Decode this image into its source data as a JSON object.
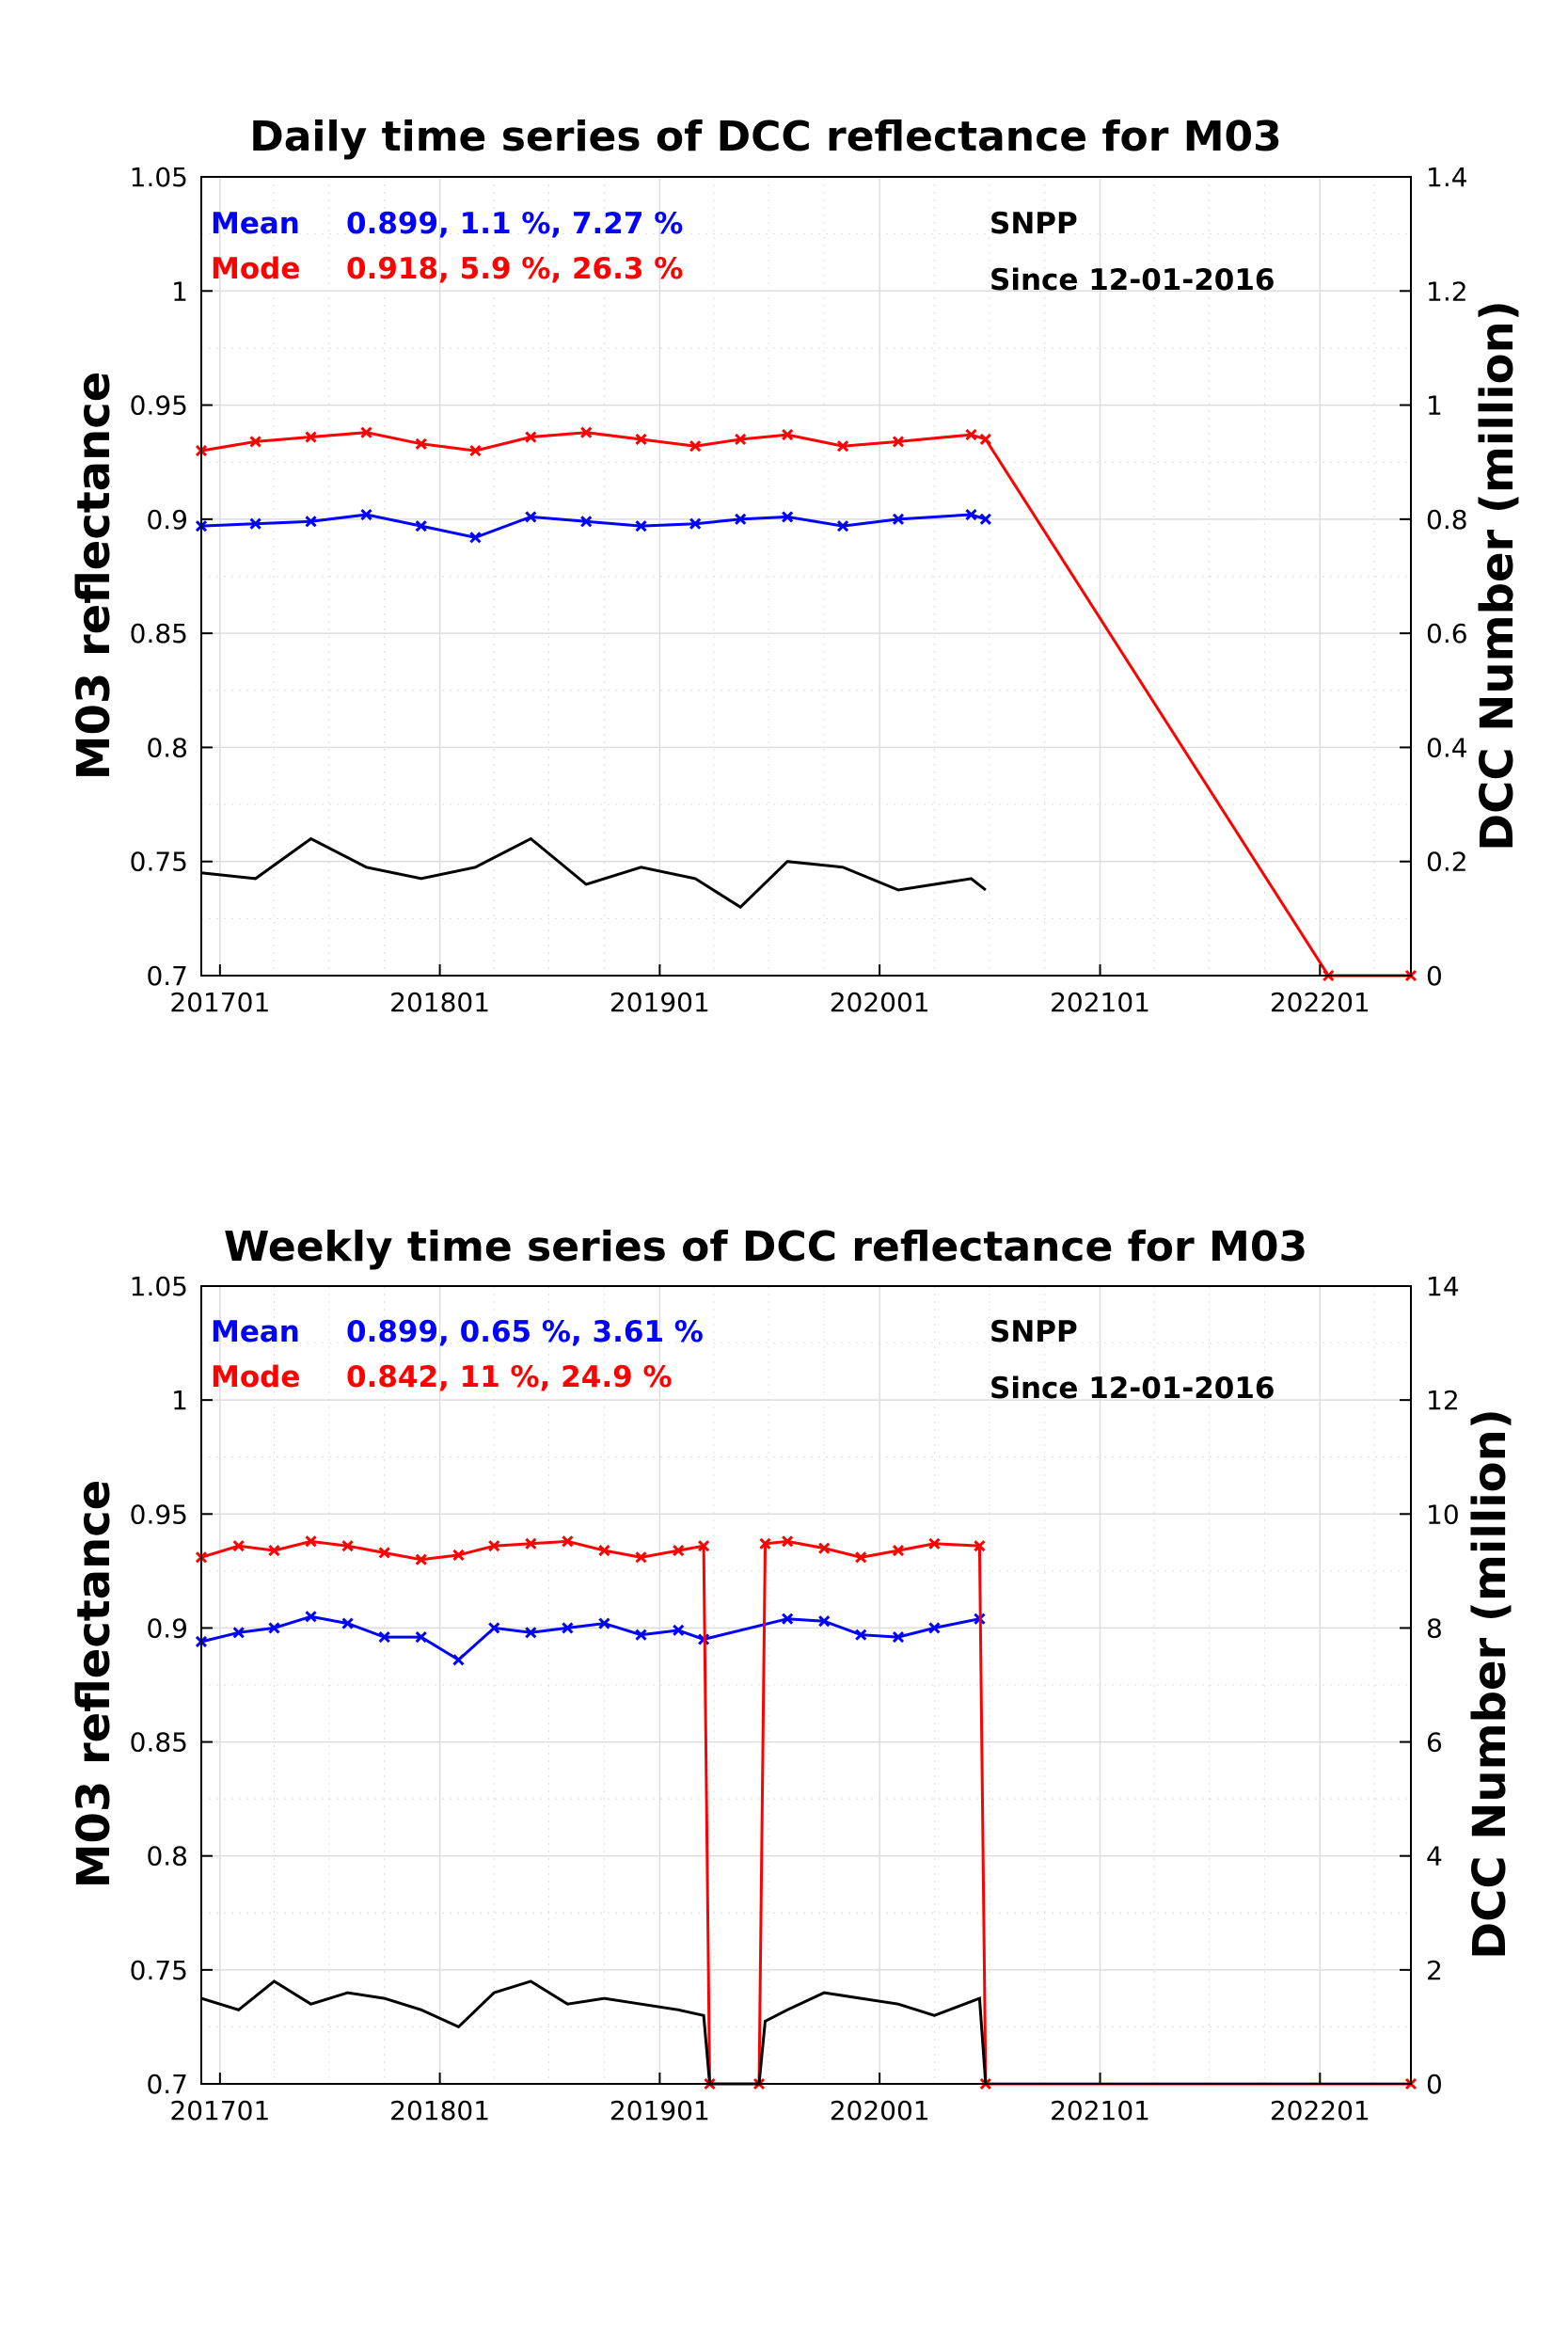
{
  "chart_data": [
    {
      "type": "line",
      "title": "Daily time series of DCC reflectance for M03",
      "ylabel": "M03 reflectance",
      "y2label": "DCC Number (million)",
      "xlabel": "",
      "x_range": [
        "2016-12-01",
        "2022-06-01"
      ],
      "ylim": [
        0.7,
        1.05
      ],
      "y2lim": [
        0,
        1.4
      ],
      "x_ticks": [
        "201701",
        "201801",
        "201901",
        "202001",
        "202101",
        "202201"
      ],
      "y_ticks": [
        "0.7",
        "0.75",
        "0.8",
        "0.85",
        "0.9",
        "0.95",
        "1",
        "1.05"
      ],
      "y2_ticks": [
        "0",
        "0.2",
        "0.4",
        "0.6",
        "0.8",
        "1",
        "1.2",
        "1.4"
      ],
      "grid": true,
      "annotations": {
        "mean_label": "Mean",
        "mean_stats": "0.899, 1.1 %, 7.27 %",
        "mode_label": "Mode",
        "mode_stats": "0.918, 5.9 %, 26.3 %",
        "satellite": "SNPP",
        "since": "Since 12-01-2016"
      },
      "series": [
        {
          "name": "Mean",
          "color": "#0000ff",
          "axis": "left",
          "x": [
            "2016-12-01",
            "2017-03-01",
            "2017-06-01",
            "2017-09-01",
            "2017-12-01",
            "2018-03-01",
            "2018-06-01",
            "2018-09-01",
            "2018-12-01",
            "2019-03-01",
            "2019-05-15",
            "2019-08-01",
            "2019-11-01",
            "2020-02-01",
            "2020-06-01",
            "2020-06-25"
          ],
          "y": [
            0.897,
            0.898,
            0.899,
            0.902,
            0.897,
            0.892,
            0.901,
            0.899,
            0.897,
            0.898,
            0.9,
            0.901,
            0.897,
            0.9,
            0.902,
            0.9
          ]
        },
        {
          "name": "Mode",
          "color": "#ff0000",
          "axis": "left",
          "x": [
            "2016-12-01",
            "2017-03-01",
            "2017-06-01",
            "2017-09-01",
            "2017-12-01",
            "2018-03-01",
            "2018-06-01",
            "2018-09-01",
            "2018-12-01",
            "2019-03-01",
            "2019-05-15",
            "2019-08-01",
            "2019-11-01",
            "2020-02-01",
            "2020-06-01",
            "2020-06-25",
            "2022-01-15",
            "2022-06-01"
          ],
          "y": [
            0.93,
            0.934,
            0.936,
            0.938,
            0.933,
            0.93,
            0.936,
            0.938,
            0.935,
            0.932,
            0.935,
            0.937,
            0.932,
            0.934,
            0.937,
            0.935,
            0.7,
            0.7
          ]
        },
        {
          "name": "DCC Number",
          "color": "#000000",
          "axis": "right",
          "x": [
            "2016-12-01",
            "2017-03-01",
            "2017-06-01",
            "2017-09-01",
            "2017-12-01",
            "2018-03-01",
            "2018-06-01",
            "2018-09-01",
            "2018-12-01",
            "2019-03-01",
            "2019-05-15",
            "2019-08-01",
            "2019-11-01",
            "2020-02-01",
            "2020-06-01",
            "2020-06-25"
          ],
          "y": [
            0.18,
            0.17,
            0.24,
            0.19,
            0.17,
            0.19,
            0.24,
            0.16,
            0.19,
            0.17,
            0.12,
            0.2,
            0.19,
            0.15,
            0.17,
            0.15
          ]
        }
      ]
    },
    {
      "type": "line",
      "title": "Weekly time series of DCC reflectance for M03",
      "ylabel": "M03 reflectance",
      "y2label": "DCC Number (million)",
      "xlabel": "",
      "x_range": [
        "2016-12-01",
        "2022-06-01"
      ],
      "ylim": [
        0.7,
        1.05
      ],
      "y2lim": [
        0,
        14
      ],
      "x_ticks": [
        "201701",
        "201801",
        "201901",
        "202001",
        "202101",
        "202201"
      ],
      "y_ticks": [
        "0.7",
        "0.75",
        "0.8",
        "0.85",
        "0.9",
        "0.95",
        "1",
        "1.05"
      ],
      "y2_ticks": [
        "0",
        "2",
        "4",
        "6",
        "8",
        "10",
        "12",
        "14"
      ],
      "grid": true,
      "annotations": {
        "mean_label": "Mean",
        "mean_stats": "0.899, 0.65 %, 3.61 %",
        "mode_label": "Mode",
        "mode_stats": "0.842, 11 %, 24.9 %",
        "satellite": "SNPP",
        "since": "Since 12-01-2016"
      },
      "series": [
        {
          "name": "Mean",
          "color": "#0000ff",
          "axis": "left",
          "x": [
            "2016-12-01",
            "2017-02-01",
            "2017-04-01",
            "2017-06-01",
            "2017-08-01",
            "2017-10-01",
            "2017-12-01",
            "2018-02-01",
            "2018-04-01",
            "2018-06-01",
            "2018-08-01",
            "2018-10-01",
            "2018-12-01",
            "2019-02-01",
            "2019-03-15",
            "2019-08-01",
            "2019-10-01",
            "2019-12-01",
            "2020-02-01",
            "2020-04-01",
            "2020-06-15"
          ],
          "y": [
            0.894,
            0.898,
            0.9,
            0.905,
            0.902,
            0.896,
            0.896,
            0.886,
            0.9,
            0.898,
            0.9,
            0.902,
            0.897,
            0.899,
            0.895,
            0.904,
            0.903,
            0.897,
            0.896,
            0.9,
            0.904
          ]
        },
        {
          "name": "Mode",
          "color": "#ff0000",
          "axis": "left",
          "x": [
            "2016-12-01",
            "2017-02-01",
            "2017-04-01",
            "2017-06-01",
            "2017-08-01",
            "2017-10-01",
            "2017-12-01",
            "2018-02-01",
            "2018-04-01",
            "2018-06-01",
            "2018-08-01",
            "2018-10-01",
            "2018-12-01",
            "2019-02-01",
            "2019-03-15",
            "2019-03-25",
            "2019-06-15",
            "2019-06-25",
            "2019-08-01",
            "2019-10-01",
            "2019-12-01",
            "2020-02-01",
            "2020-04-01",
            "2020-06-15",
            "2020-06-25",
            "2022-06-01"
          ],
          "y": [
            0.931,
            0.936,
            0.934,
            0.938,
            0.936,
            0.933,
            0.93,
            0.932,
            0.936,
            0.937,
            0.938,
            0.934,
            0.931,
            0.934,
            0.936,
            0.7,
            0.7,
            0.937,
            0.938,
            0.935,
            0.931,
            0.934,
            0.937,
            0.936,
            0.7,
            0.7
          ]
        },
        {
          "name": "DCC Number",
          "color": "#000000",
          "axis": "right",
          "x": [
            "2016-12-01",
            "2017-02-01",
            "2017-04-01",
            "2017-06-01",
            "2017-08-01",
            "2017-10-01",
            "2017-12-01",
            "2018-02-01",
            "2018-04-01",
            "2018-06-01",
            "2018-08-01",
            "2018-10-01",
            "2018-12-01",
            "2019-02-01",
            "2019-03-15",
            "2019-03-25",
            "2019-06-15",
            "2019-06-25",
            "2019-08-01",
            "2019-10-01",
            "2019-12-01",
            "2020-02-01",
            "2020-04-01",
            "2020-06-15",
            "2020-06-25"
          ],
          "y": [
            1.5,
            1.3,
            1.8,
            1.4,
            1.6,
            1.5,
            1.3,
            1.0,
            1.6,
            1.8,
            1.4,
            1.5,
            1.4,
            1.3,
            1.2,
            0,
            0,
            1.1,
            1.3,
            1.6,
            1.5,
            1.4,
            1.2,
            1.5,
            0
          ]
        }
      ]
    }
  ]
}
